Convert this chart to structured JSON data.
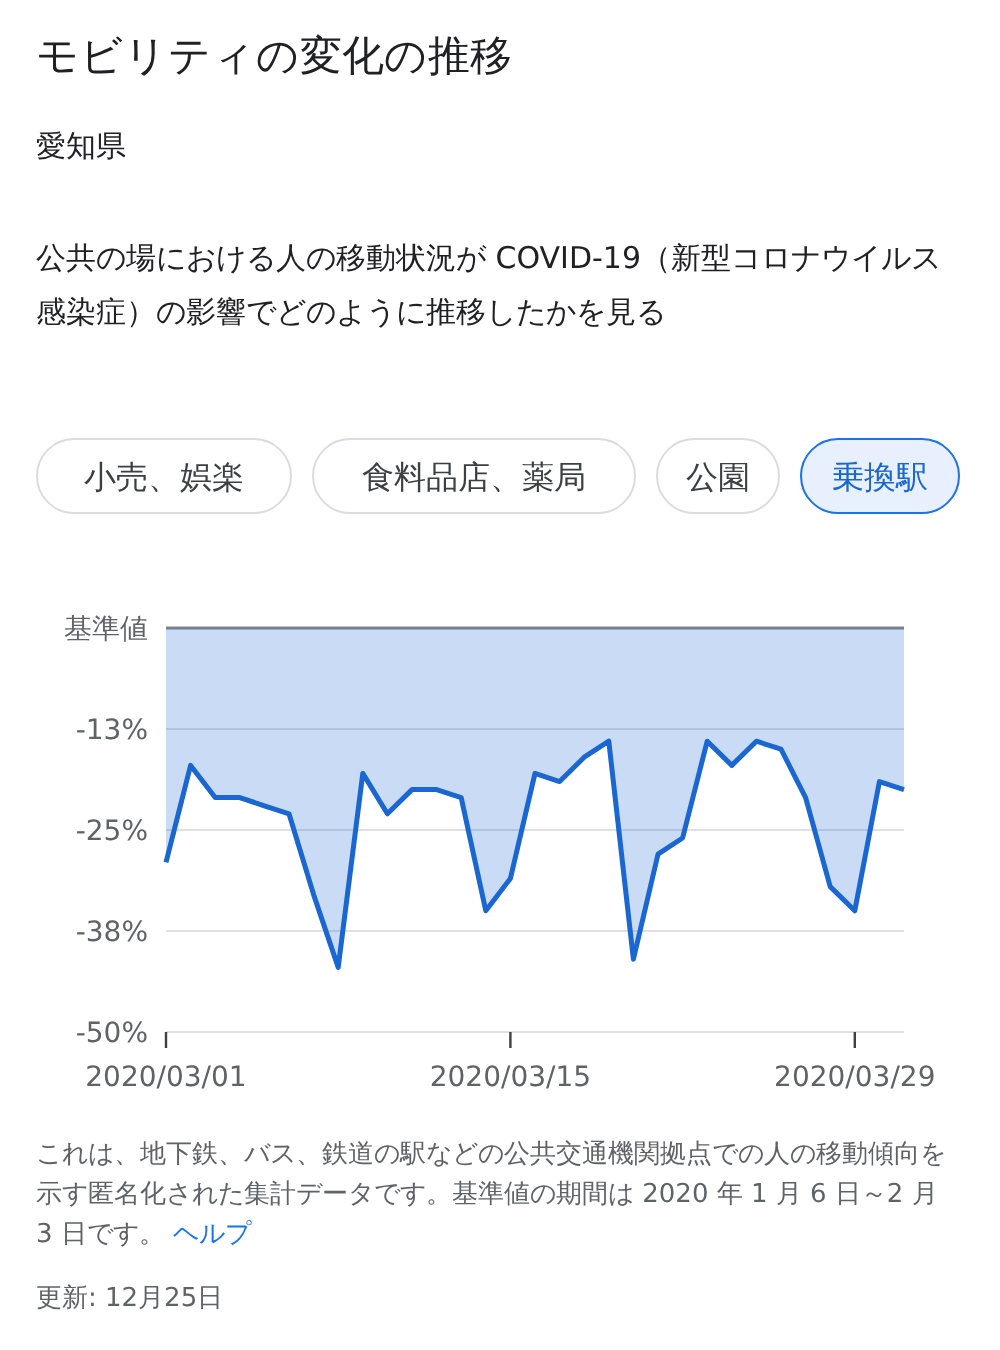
{
  "chart_data": {
    "type": "area",
    "title": "モビリティの変化の推移",
    "subtitle": "愛知県",
    "annotations": [
      "公共の場における人の移動状況が COVID-19（新型コロナウイルス感染症）の影響でどのように推移したかを見る",
      "小売、娯楽",
      "食料品店、薬局",
      "公園",
      "乗換駅",
      "これは、地下鉄、バス、鉄道の駅などの公共交通機関拠点での人の移動傾向を示す匿名化された集計データです。基準値の期間は 2020 年 1 月 6 日～2 月 3 日です。",
      "ヘルプ",
      "更新: 12月25日"
    ],
    "x": [
      "2020-03-01",
      "2020-03-02",
      "2020-03-03",
      "2020-03-04",
      "2020-03-05",
      "2020-03-06",
      "2020-03-07",
      "2020-03-08",
      "2020-03-09",
      "2020-03-10",
      "2020-03-11",
      "2020-03-12",
      "2020-03-13",
      "2020-03-14",
      "2020-03-15",
      "2020-03-16",
      "2020-03-17",
      "2020-03-18",
      "2020-03-19",
      "2020-03-20",
      "2020-03-21",
      "2020-03-22",
      "2020-03-23",
      "2020-03-24",
      "2020-03-25",
      "2020-03-26",
      "2020-03-27",
      "2020-03-28",
      "2020-03-29",
      "2020-03-30",
      "2020-03-31"
    ],
    "series": [
      {
        "color": "#1a67d2",
        "values": [
          -29,
          -17,
          -21,
          -21,
          -22,
          -23,
          -33,
          -42,
          -18,
          -23,
          -20,
          -20,
          -21,
          -35,
          -31,
          -18,
          -19,
          -16,
          -14,
          -41,
          -28,
          -26,
          -14,
          -17,
          -14,
          -15,
          -21,
          -32,
          -35,
          -19,
          -20
        ]
      }
    ],
    "xlim": [
      "2020-03-01",
      "2020-03-31"
    ],
    "xticks": [
      {
        "value": "2020-03-01",
        "label": "2020/03/01"
      },
      {
        "value": "2020-03-15",
        "label": "2020/03/15"
      },
      {
        "value": "2020-03-29",
        "label": "2020/03/29"
      }
    ],
    "ylim": [
      -50,
      0
    ],
    "yticks": [
      {
        "value": 0,
        "label": "基準値"
      },
      {
        "value": -12.5,
        "label": "-13%"
      },
      {
        "value": -25,
        "label": "-25%"
      },
      {
        "value": -37.5,
        "label": "-38%"
      },
      {
        "value": -50,
        "label": "-50%"
      }
    ],
    "grid": "y"
  }
}
